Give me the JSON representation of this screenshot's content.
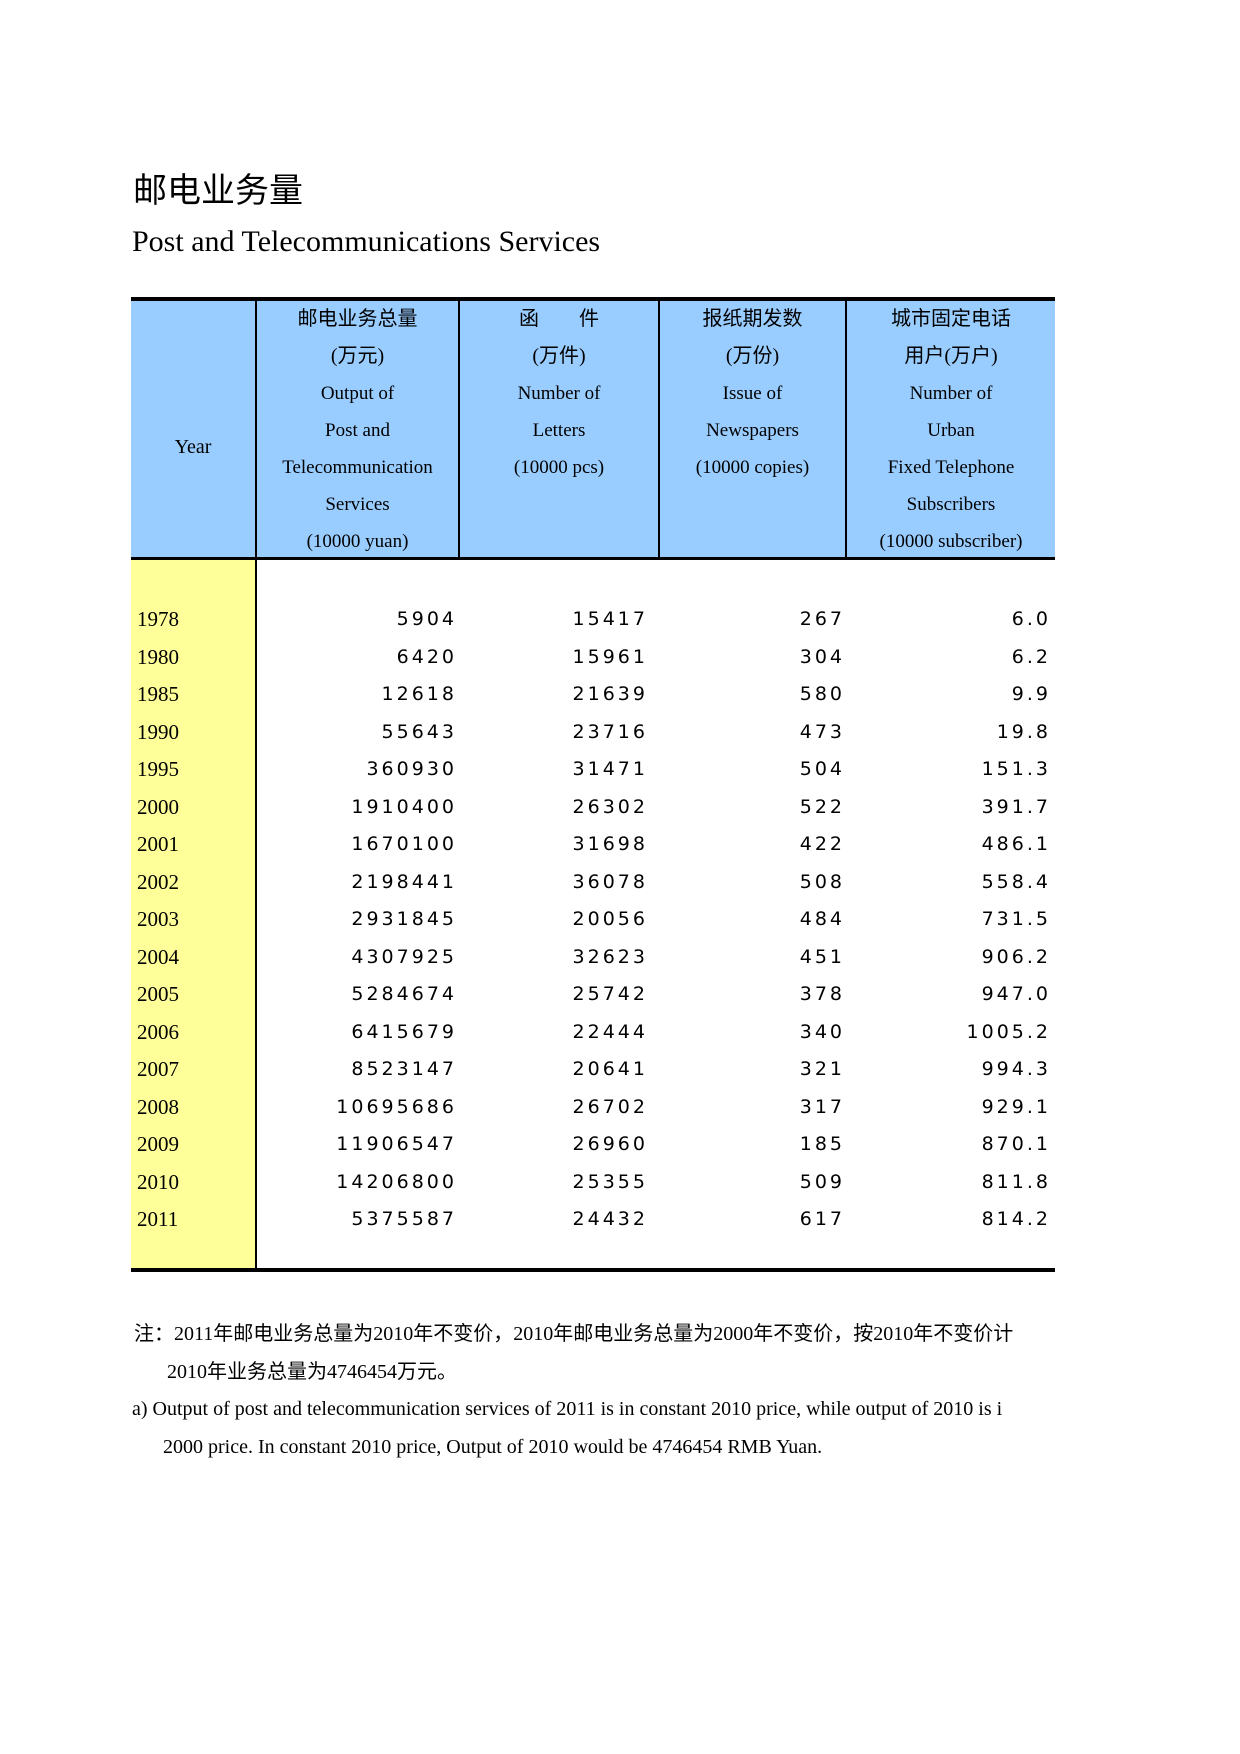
{
  "page": {
    "title_cn": "邮电业务量",
    "title_en": "Post and Telecommunications Services"
  },
  "colors": {
    "header_bg": "#99CCFF",
    "year_column_bg": "#FFFF99",
    "border": "#000000"
  },
  "table": {
    "header": {
      "year": "Year",
      "output": {
        "cn": "邮电业务总量",
        "unit_cn": "(万元)",
        "en1": "Output of",
        "en2": "Post and",
        "en3": "Telecommunication",
        "en4": "Services",
        "unit_en": "(10000 yuan)"
      },
      "letters": {
        "cn": "函　　件",
        "unit_cn": "(万件)",
        "en1": "Number of",
        "en2": "Letters",
        "unit_en": "(10000  pcs)"
      },
      "newspapers": {
        "cn": "报纸期发数",
        "unit_cn": "(万份)",
        "en1": "Issue of",
        "en2": "Newspapers",
        "unit_en": "(10000 copies)"
      },
      "fixed_telephone": {
        "cn1": "城市固定电话",
        "cn2": "用户(万户)",
        "en1": "Number of",
        "en2": "Urban",
        "en3": "Fixed Telephone",
        "en4": "Subscribers",
        "unit_en": "(10000  subscriber)"
      }
    },
    "rows": [
      {
        "year": "1978",
        "output": "5904",
        "letters": "15417",
        "newspapers": "267",
        "fixed": "6.0"
      },
      {
        "year": "1980",
        "output": "6420",
        "letters": "15961",
        "newspapers": "304",
        "fixed": "6.2"
      },
      {
        "year": "1985",
        "output": "12618",
        "letters": "21639",
        "newspapers": "580",
        "fixed": "9.9"
      },
      {
        "year": "1990",
        "output": "55643",
        "letters": "23716",
        "newspapers": "473",
        "fixed": "19.8"
      },
      {
        "year": "1995",
        "output": "360930",
        "letters": "31471",
        "newspapers": "504",
        "fixed": "151.3"
      },
      {
        "year": "2000",
        "output": "1910400",
        "letters": "26302",
        "newspapers": "522",
        "fixed": "391.7"
      },
      {
        "year": "2001",
        "output": "1670100",
        "letters": "31698",
        "newspapers": "422",
        "fixed": "486.1"
      },
      {
        "year": "2002",
        "output": "2198441",
        "letters": "36078",
        "newspapers": "508",
        "fixed": "558.4"
      },
      {
        "year": "2003",
        "output": "2931845",
        "letters": "20056",
        "newspapers": "484",
        "fixed": "731.5"
      },
      {
        "year": "2004",
        "output": "4307925",
        "letters": "32623",
        "newspapers": "451",
        "fixed": "906.2"
      },
      {
        "year": "2005",
        "output": "5284674",
        "letters": "25742",
        "newspapers": "378",
        "fixed": "947.0"
      },
      {
        "year": "2006",
        "output": "6415679",
        "letters": "22444",
        "newspapers": "340",
        "fixed": "1005.2"
      },
      {
        "year": "2007",
        "output": "8523147",
        "letters": "20641",
        "newspapers": "321",
        "fixed": "994.3"
      },
      {
        "year": "2008",
        "output": "10695686",
        "letters": "26702",
        "newspapers": "317",
        "fixed": "929.1"
      },
      {
        "year": "2009",
        "output": "11906547",
        "letters": "26960",
        "newspapers": "185",
        "fixed": "870.1"
      },
      {
        "year": "2010",
        "output": "14206800",
        "letters": "25355",
        "newspapers": "509",
        "fixed": "811.8"
      },
      {
        "year": "2011",
        "output": "5375587",
        "letters": "24432",
        "newspapers": "617",
        "fixed": "814.2"
      }
    ]
  },
  "notes": {
    "cn1": "注：2011年邮电业务总量为2010年不变价，2010年邮电业务总量为2000年不变价，按2010年不变价计",
    "cn2": "2010年业务总量为4746454万元。",
    "en1": "a) Output of post and telecommunication services of 2011 is in constant 2010 price, while  output of  2010 is i",
    "en2": "2000 price. In constant 2010 price, Output of 2010 would be 4746454 RMB Yuan."
  }
}
